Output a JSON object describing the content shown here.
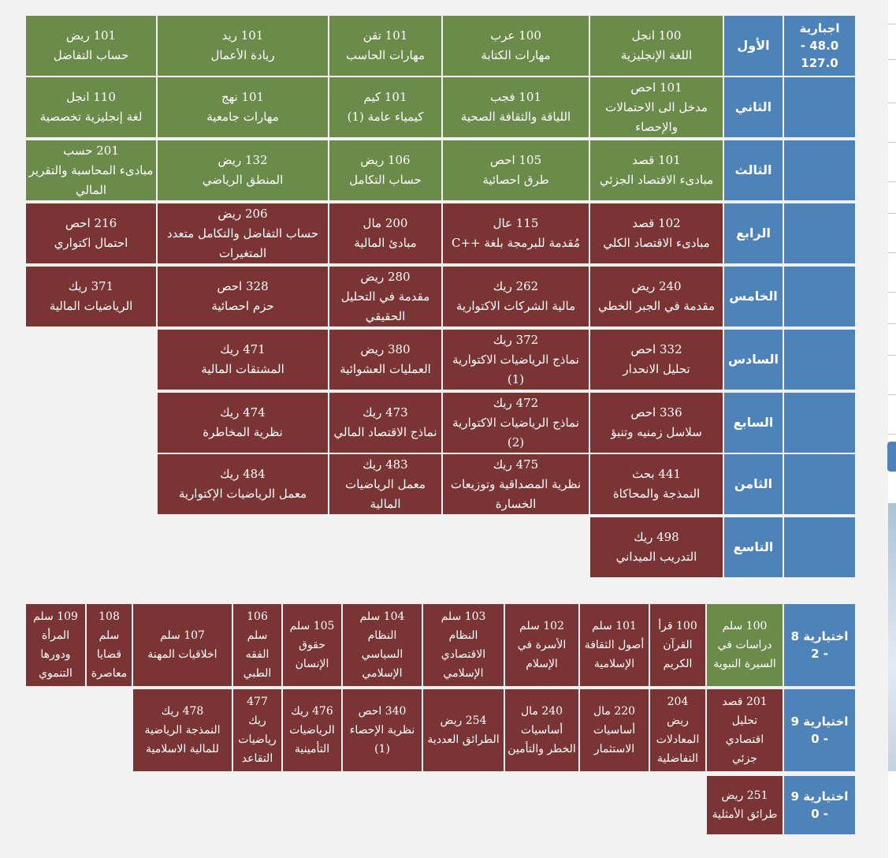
{
  "plan": {
    "required": {
      "label": "اجبارية",
      "min": "48.0 -",
      "max": "127.0"
    },
    "levels": [
      {
        "name": "الأول",
        "courses": [
          {
            "code": "100 انجل",
            "title": "اللغة الإنجليزية",
            "color": "green"
          },
          {
            "code": "100 عرب",
            "title": "مهارات الكتابة",
            "color": "green"
          },
          {
            "code": "101 تقن",
            "title": "مهارات الحاسب",
            "color": "green"
          },
          {
            "code": "101 ريد",
            "title": "ريادة الأعمال",
            "color": "green"
          },
          {
            "code": "101 ريض",
            "title": "حساب التفاضل",
            "color": "green"
          }
        ]
      },
      {
        "name": "الثاني",
        "courses": [
          {
            "code": "101 احص",
            "title": "مدخل الى الاحتمالات\nوالإحصاء",
            "color": "green"
          },
          {
            "code": "101 فجب",
            "title": "اللياقة والثقافة الصحية",
            "color": "green"
          },
          {
            "code": "101 كيم",
            "title": "كيمياء عامة (1)",
            "color": "green"
          },
          {
            "code": "101 نهج",
            "title": "مهارات جامعية",
            "color": "green"
          },
          {
            "code": "110 انجل",
            "title": "لغة إنجليزية تخصصية",
            "color": "green"
          }
        ]
      },
      {
        "name": "الثالث",
        "courses": [
          {
            "code": "101 قصد",
            "title": "مبادىء الاقتصاد الجزئي",
            "color": "green"
          },
          {
            "code": "105 احص",
            "title": "طرق احصائية",
            "color": "green"
          },
          {
            "code": "106 ريض",
            "title": "حساب التكامل",
            "color": "green"
          },
          {
            "code": "132 ريض",
            "title": "المنطق الرياضي",
            "color": "green"
          },
          {
            "code": "201 حسب",
            "title": "مبادىء المحاسبة والتقرير\nالمالي",
            "color": "green"
          }
        ]
      },
      {
        "name": "الرابع",
        "courses": [
          {
            "code": "102 قصد",
            "title": "مبادىء الاقتصاد الكلي",
            "color": "red"
          },
          {
            "code": "115 عال",
            "title": "مُقدمة للبرمجة بلغة ++C",
            "color": "red"
          },
          {
            "code": "200 مال",
            "title": "مبادئ المالية",
            "color": "red"
          },
          {
            "code": "206 ريض",
            "title": "حساب التفاضل والتكامل متعدد\nالمتغيرات",
            "color": "red"
          },
          {
            "code": "216 احص",
            "title": "احتمال اكتواري",
            "color": "red"
          }
        ]
      },
      {
        "name": "الخامس",
        "courses": [
          {
            "code": "240 ريض",
            "title": "مقدمة في الجبر الخطي",
            "color": "red"
          },
          {
            "code": "262 ريك",
            "title": "مالية الشركات الاكتوارية",
            "color": "red"
          },
          {
            "code": "280 ريض",
            "title": "مقدمة في التحليل\nالحقيقي",
            "color": "red"
          },
          {
            "code": "328 احص",
            "title": "حزم احصائية",
            "color": "red"
          },
          {
            "code": "371 ريك",
            "title": "الرياضيات المالية",
            "color": "red"
          }
        ]
      },
      {
        "name": "السادس",
        "courses": [
          {
            "code": "332 احص",
            "title": "تحليل الانحدار",
            "color": "red"
          },
          {
            "code": "372 ريك",
            "title": "نماذج الرياضيات الاكتوارية\n(1)",
            "color": "red"
          },
          {
            "code": "380 ريض",
            "title": "العمليات العشوائية",
            "color": "red"
          },
          {
            "code": "471 ريك",
            "title": "المشتقات المالية",
            "color": "red"
          }
        ]
      },
      {
        "name": "السابع",
        "courses": [
          {
            "code": "336 احص",
            "title": "سلاسل زمنيه وتنبؤ",
            "color": "red"
          },
          {
            "code": "472 ريك",
            "title": "نماذج الرياضيات الاكتوارية\n(2)",
            "color": "red"
          },
          {
            "code": "473 ريك",
            "title": "نماذج الاقتصاد المالي",
            "color": "red"
          },
          {
            "code": "474 ريك",
            "title": "نظرية المخاطرة",
            "color": "red"
          }
        ]
      },
      {
        "name": "الثامن",
        "courses": [
          {
            "code": "441 بحث",
            "title": "النمذجة والمحاكاة",
            "color": "red"
          },
          {
            "code": "475 ريك",
            "title": "نظرية المصداقية وتوزيعات\nالخسارة",
            "color": "red"
          },
          {
            "code": "483 ريك",
            "title": "معمل الرياضيات\nالمالية",
            "color": "red"
          },
          {
            "code": "484 ريك",
            "title": "معمل الرياضيات الإكتوارية",
            "color": "red"
          }
        ]
      },
      {
        "name": "التاسع",
        "courses": [
          {
            "code": "498 ريك",
            "title": "التدريب الميداني",
            "color": "red"
          }
        ]
      }
    ],
    "electives": [
      {
        "label": "اختيارية 8\n- 2",
        "courses": [
          {
            "text": "100 سلم\nدراسات في\nالسيرة النبوية",
            "color": "green"
          },
          {
            "text": "100 قرأ\nالقرآن\nالكريم",
            "color": "red"
          },
          {
            "text": "101 سلم\nأصول الثقافة\nالإسلامية",
            "color": "red"
          },
          {
            "text": "102 سلم\nالأسرة في\nالإسلام",
            "color": "red"
          },
          {
            "text": "103 سلم\nالنظام\nالاقتصادي\nالإسلامي",
            "color": "red"
          },
          {
            "text": "104 سلم\nالنظام\nالسياسي\nالإسلامي",
            "color": "red"
          },
          {
            "text": "105 سلم\nحقوق\nالإنسان",
            "color": "red"
          },
          {
            "text": "106\nسلم\nالفقه\nالطبي",
            "color": "red"
          },
          {
            "text": "107 سلم\nاخلاقيات المهنة",
            "color": "red"
          },
          {
            "text": "108\nسلم\nقضايا\nمعاصرة",
            "color": "red"
          },
          {
            "text": "109 سلم\nالمرأة\nودورها\nالتنموي",
            "color": "red"
          }
        ]
      },
      {
        "label": "اختيارية 9\n- 0",
        "courses": [
          {
            "text": "201 قصد\nتحليل\nاقتصادي\nجزئي",
            "color": "red"
          },
          {
            "text": "204\nريض\nالمعادلات\nالتفاضلية",
            "color": "red"
          },
          {
            "text": "220 مال\nأساسيات\nالاستثمار",
            "color": "red"
          },
          {
            "text": "240 مال\nأساسيات\nالخطر والتأمين",
            "color": "red"
          },
          {
            "text": "254 ريض\nالطرائق العددية",
            "color": "red"
          },
          {
            "text": "340 احص\nنظرية الإحصاء\n(1)",
            "color": "red"
          },
          {
            "text": "476 ريك\nالرياضيات\nالتأمينية",
            "color": "red"
          },
          {
            "text": "477\nريك\nرياضيات\nالتقاعد",
            "color": "red"
          },
          {
            "text": "478 ريك\nالنمذجة الرياضية\nللمالية الاسلامية",
            "color": "red"
          }
        ]
      },
      {
        "label": "اختيارية 9\n- 0",
        "courses": [
          {
            "text": "251 ريض\nطرائق الأمثلية",
            "color": "red"
          }
        ]
      }
    ]
  }
}
